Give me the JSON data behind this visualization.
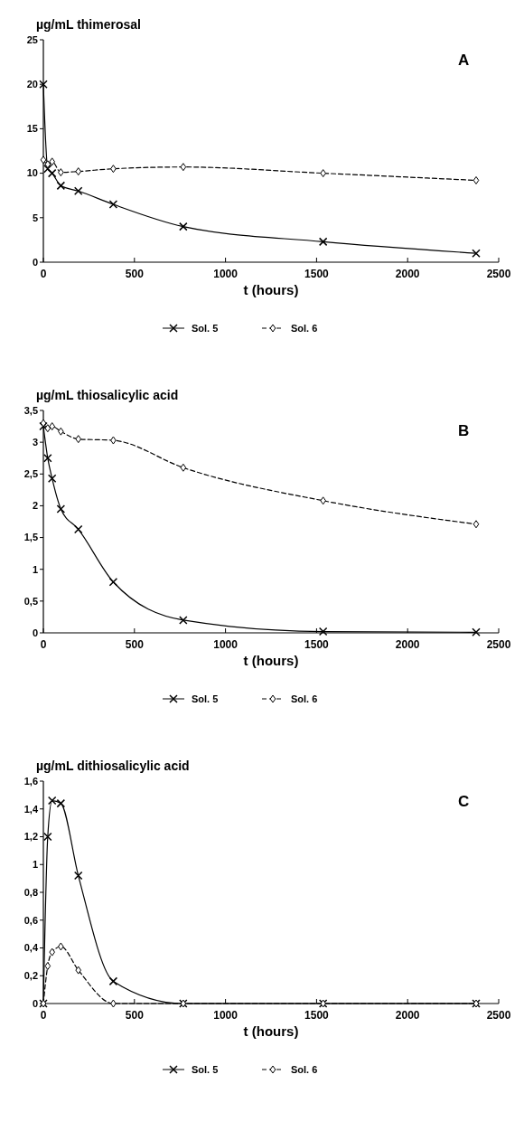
{
  "chart_data": [
    {
      "type": "line",
      "ylabel": "µg/mL thimerosal",
      "xlabel": "t (hours)",
      "annotations": [
        "A"
      ],
      "x": [
        0,
        24,
        48,
        96,
        192,
        384,
        768,
        1536,
        2376
      ],
      "xlim": [
        0,
        2500
      ],
      "xticks": [
        0,
        500,
        1000,
        1500,
        2000,
        2500
      ],
      "ylim": [
        0,
        25
      ],
      "yticks": [
        0,
        5,
        10,
        15,
        20,
        25
      ],
      "legend": "bottom",
      "grid": false,
      "series": [
        {
          "name": "Sol. 5",
          "color": "#000000",
          "marker": "cross",
          "line_style": "solid",
          "values": [
            20,
            10.5,
            10,
            8.6,
            8,
            6.5,
            4,
            2.3,
            1
          ]
        },
        {
          "name": "Sol. 6",
          "color": "#000000",
          "marker": "diamond",
          "line_style": "dashed",
          "values": [
            11.5,
            11,
            11.3,
            10.1,
            10.2,
            10.5,
            10.7,
            10,
            9.2
          ]
        }
      ]
    },
    {
      "type": "line",
      "ylabel": "µg/mL thiosalicylic acid",
      "xlabel": "t (hours)",
      "annotations": [
        "B"
      ],
      "x": [
        0,
        24,
        48,
        96,
        192,
        384,
        768,
        1536,
        2376
      ],
      "xlim": [
        0,
        2500
      ],
      "xticks": [
        0,
        500,
        1000,
        1500,
        2000,
        2500
      ],
      "ylim": [
        0,
        3.5
      ],
      "yticks": [
        0,
        {
          "value": 0.5,
          "label": "0,5"
        },
        1,
        {
          "value": 1.5,
          "label": "1,5"
        },
        2,
        {
          "value": 2.5,
          "label": "2,5"
        },
        3,
        {
          "value": 3.5,
          "label": "3,5"
        }
      ],
      "legend": "bottom",
      "grid": false,
      "series": [
        {
          "name": "Sol. 5",
          "color": "#000000",
          "marker": "cross",
          "line_style": "solid",
          "values": [
            3.25,
            2.75,
            2.43,
            1.95,
            1.63,
            0.8,
            0.2,
            0.02,
            0.01
          ]
        },
        {
          "name": "Sol. 6",
          "color": "#000000",
          "marker": "diamond",
          "line_style": "dashed",
          "values": [
            3.3,
            3.22,
            3.25,
            3.17,
            3.05,
            3.03,
            2.6,
            2.08,
            1.71
          ]
        }
      ]
    },
    {
      "type": "line",
      "ylabel": "µg/mL dithiosalicylic acid",
      "xlabel": "t (hours)",
      "annotations": [
        "C"
      ],
      "x": [
        0,
        24,
        48,
        96,
        192,
        384,
        768,
        1536,
        2376
      ],
      "xlim": [
        0,
        2500
      ],
      "xticks": [
        0,
        500,
        1000,
        1500,
        2000,
        2500
      ],
      "ylim": [
        0,
        1.6
      ],
      "yticks": [
        0,
        {
          "value": 0.2,
          "label": "0,2"
        },
        {
          "value": 0.4,
          "label": "0,4"
        },
        {
          "value": 0.6,
          "label": "0,6"
        },
        {
          "value": 0.8,
          "label": "0,8"
        },
        1,
        {
          "value": 1.2,
          "label": "1,2"
        },
        {
          "value": 1.4,
          "label": "1,4"
        },
        {
          "value": 1.6,
          "label": "1,6"
        }
      ],
      "legend": "bottom",
      "grid": false,
      "series": [
        {
          "name": "Sol. 5",
          "color": "#000000",
          "marker": "cross",
          "line_style": "solid",
          "values": [
            0,
            1.2,
            1.46,
            1.44,
            0.92,
            0.16,
            0,
            0,
            0
          ]
        },
        {
          "name": "Sol. 6",
          "color": "#000000",
          "marker": "diamond",
          "line_style": "dashed",
          "values": [
            0,
            0.27,
            0.37,
            0.41,
            0.24,
            0,
            0,
            0,
            0
          ]
        }
      ]
    }
  ]
}
